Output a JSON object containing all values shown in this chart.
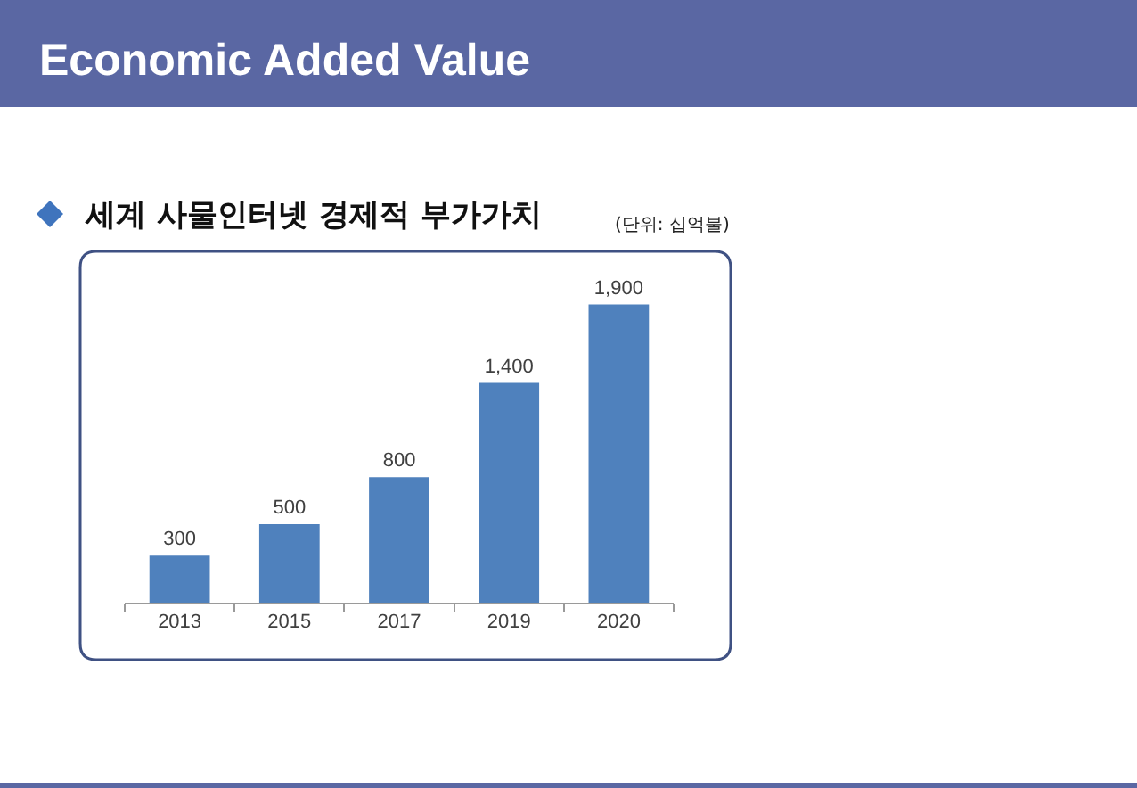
{
  "chart_data": {
    "type": "bar",
    "title": "Economic Added Value",
    "subtitle": "세계 사물인터넷 경제적 부가가치",
    "annotations": [
      "(단위: 십억불)"
    ],
    "categories": [
      "2013",
      "2015",
      "2017",
      "2019",
      "2020"
    ],
    "values": [
      300,
      500,
      800,
      1400,
      1900
    ],
    "value_labels": [
      "300",
      "500",
      "800",
      "1,400",
      "1,900"
    ],
    "color": "#4f81bd",
    "tick_labels": "x"
  }
}
